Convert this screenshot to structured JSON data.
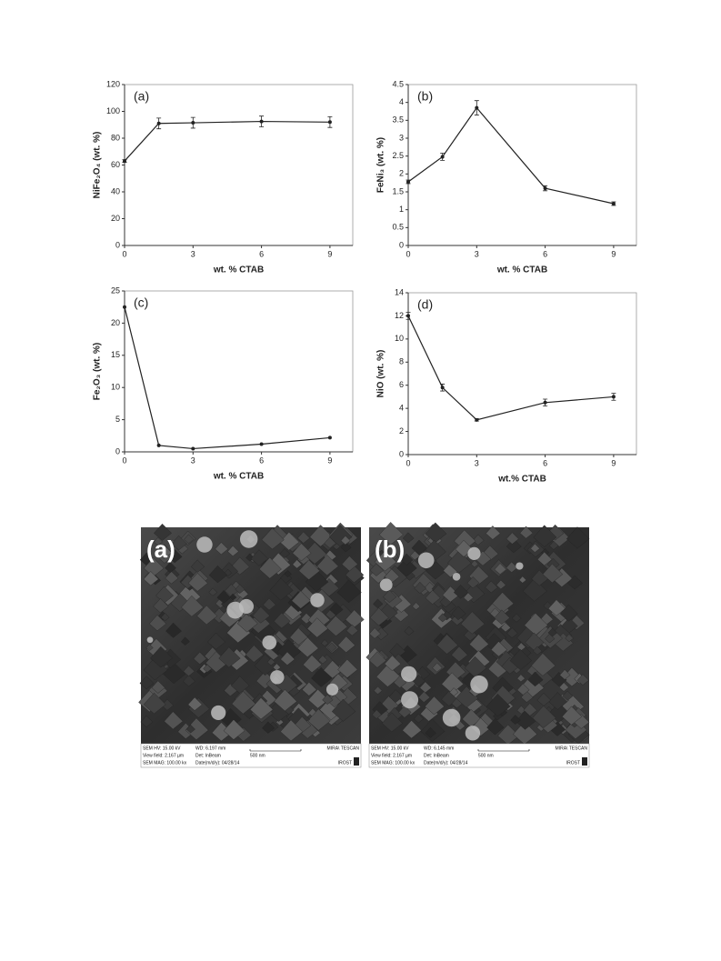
{
  "chart_data": [
    {
      "type": "line",
      "label": "(a)",
      "xlabel": "wt. % CTAB",
      "ylabel": "NiFe₂O₄ (wt. %)",
      "color": "#222222",
      "x": [
        0,
        1.5,
        3,
        6,
        9
      ],
      "values": [
        63,
        91,
        91.5,
        92.5,
        92
      ],
      "errors": [
        1,
        4,
        4,
        4,
        4
      ],
      "xlim": [
        0,
        10
      ],
      "ylim": [
        0,
        120
      ],
      "xticks": [
        0,
        3,
        6,
        9
      ],
      "yticks": [
        0,
        20,
        40,
        60,
        80,
        100,
        120
      ]
    },
    {
      "type": "line",
      "label": "(b)",
      "xlabel": "wt. % CTAB",
      "ylabel": "FeNi₃ (wt. %)",
      "color": "#222222",
      "x": [
        0,
        1.5,
        3,
        6,
        9
      ],
      "values": [
        1.78,
        2.48,
        3.85,
        1.6,
        1.17
      ],
      "errors": [
        0.05,
        0.1,
        0.2,
        0.07,
        0.05
      ],
      "xlim": [
        0,
        10
      ],
      "ylim": [
        0,
        4.5
      ],
      "xticks": [
        0,
        3,
        6,
        9
      ],
      "yticks": [
        0,
        0.5,
        1,
        1.5,
        2,
        2.5,
        3,
        3.5,
        4,
        4.5
      ]
    },
    {
      "type": "line",
      "label": "(c)",
      "xlabel": "wt. % CTAB",
      "ylabel": "Fe₂O₃ (wt. %)",
      "color": "#222222",
      "x": [
        0,
        1.5,
        3,
        6,
        9
      ],
      "values": [
        22.5,
        1,
        0.5,
        1.2,
        2.2
      ],
      "xlim": [
        0,
        10
      ],
      "ylim": [
        0,
        25
      ],
      "xticks": [
        0,
        3,
        6,
        9
      ],
      "yticks": [
        0,
        5,
        10,
        15,
        20,
        25
      ]
    },
    {
      "type": "line",
      "label": "(d)",
      "xlabel": "wt.% CTAB",
      "ylabel": "NiO (wt. %)",
      "color": "#222222",
      "x": [
        0,
        1.5,
        3,
        6,
        9
      ],
      "values": [
        12,
        5.8,
        3,
        4.5,
        5
      ],
      "errors": [
        0.3,
        0.3,
        0.1,
        0.3,
        0.3
      ],
      "xlim": [
        0,
        10
      ],
      "ylim": [
        0,
        14
      ],
      "xticks": [
        0,
        3,
        6,
        9
      ],
      "yticks": [
        0,
        2,
        4,
        6,
        8,
        10,
        12,
        14
      ]
    }
  ],
  "sem_images": [
    {
      "label": "(a)",
      "info": [
        [
          "SEM HV: 15.00 kV",
          "WD: 6.197 mm"
        ],
        [
          "View field: 2.167 µm",
          "Det: InBeam"
        ],
        [
          "SEM MAG: 100.00 kx",
          "Date(m/d/y): 04/28/14"
        ]
      ],
      "scale": "500 nm",
      "brand": "MIRA\\ TESCAN",
      "lab": "IROST"
    },
    {
      "label": "(b)",
      "info": [
        [
          "SEM HV: 15.00 kV",
          "WD: 6.145 mm"
        ],
        [
          "View field: 2.167 µm",
          "Det: InBeam"
        ],
        [
          "SEM MAG: 100.00 kx",
          "Date(m/d/y): 04/28/14"
        ]
      ],
      "scale": "500 nm",
      "brand": "MIRA\\ TESCAN",
      "lab": "IROST"
    }
  ]
}
